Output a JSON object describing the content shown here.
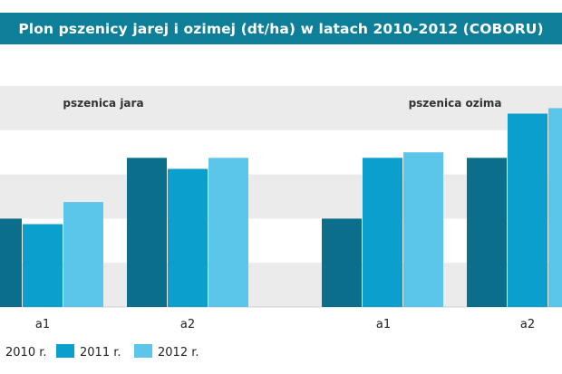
{
  "header": {
    "title": "Plon pszenicy jarej i ozimej (dt/ha) w latach 2010-2012 (COBORU)"
  },
  "chart_data": {
    "type": "bar",
    "title": "Plon pszenicy jarej i ozimej (dt/ha) w latach 2010-2012 (COBORU)",
    "groups": [
      {
        "label": "pszenica jara",
        "categories": [
          "a1",
          "a2"
        ]
      },
      {
        "label": "pszenica ozima",
        "categories": [
          "a1",
          "a2"
        ]
      }
    ],
    "categories": [
      "a1",
      "a2",
      "a1",
      "a2"
    ],
    "series": [
      {
        "name": "2010 r.",
        "color": "#0b6e8a",
        "values": [
          61,
          72,
          61,
          72
        ]
      },
      {
        "name": "2011 r.",
        "color": "#0a9fcc",
        "values": [
          60,
          70,
          72,
          80
        ]
      },
      {
        "name": "2012 r.",
        "color": "#5cc5ea",
        "values": [
          64,
          72,
          73,
          81
        ]
      }
    ],
    "ylim": [
      45,
      85
    ],
    "grid": "horizontal bands",
    "legend_position": "bottom"
  }
}
